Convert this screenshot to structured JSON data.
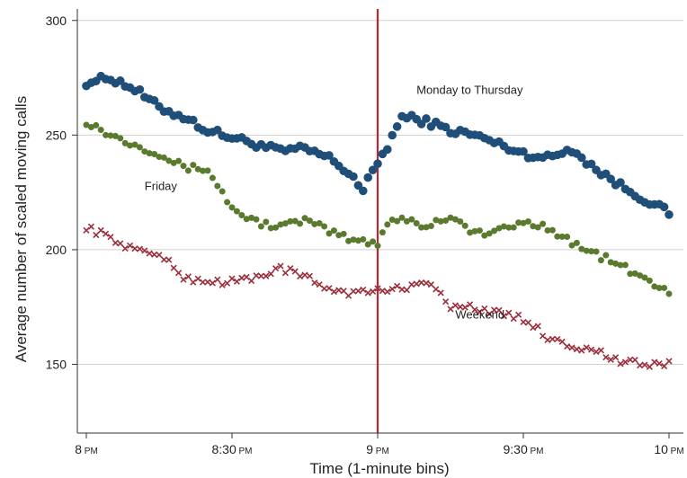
{
  "chart_data": {
    "type": "scatter",
    "title": "",
    "xlabel": "Time (1-minute bins)",
    "ylabel": "Average number of scaled moving calls",
    "x_unit": "minutes after 8 PM",
    "xlim": [
      0,
      120
    ],
    "ylim": [
      120,
      305
    ],
    "x_ticks": [
      {
        "value": 0,
        "label": "8",
        "suffix": "PM"
      },
      {
        "value": 30,
        "label": "8:30",
        "suffix": "PM"
      },
      {
        "value": 60,
        "label": "9",
        "suffix": "PM"
      },
      {
        "value": 90,
        "label": "9:30",
        "suffix": "PM"
      },
      {
        "value": 120,
        "label": "10",
        "suffix": "PM"
      }
    ],
    "y_ticks": [
      150,
      200,
      250,
      300
    ],
    "grid": "horizontal",
    "reference_line": {
      "x": 60,
      "color": "#b22a38"
    },
    "series": [
      {
        "name": "Monday to Thursday",
        "marker": "circle",
        "color": "#1f4e79",
        "label_anchor": {
          "x": 68,
          "y": 268
        },
        "x": [
          0,
          5,
          10,
          15,
          20,
          25,
          30,
          35,
          40,
          45,
          50,
          55,
          57,
          58,
          60,
          62,
          65,
          70,
          75,
          80,
          85,
          90,
          95,
          100,
          105,
          110,
          115,
          120
        ],
        "y": [
          273,
          275,
          270,
          262,
          258,
          252,
          249,
          246,
          243,
          244,
          240,
          232,
          225,
          230,
          238,
          245,
          258,
          256,
          252,
          250,
          246,
          242,
          240,
          244,
          235,
          228,
          222,
          216
        ]
      },
      {
        "name": "Friday",
        "marker": "circle",
        "color": "#5a7a2e",
        "label_anchor": {
          "x": 12,
          "y": 226
        },
        "x": [
          0,
          5,
          10,
          15,
          20,
          25,
          30,
          35,
          40,
          45,
          50,
          55,
          60,
          62,
          65,
          70,
          75,
          80,
          85,
          90,
          95,
          100,
          105,
          110,
          115,
          120
        ],
        "y": [
          256,
          250,
          246,
          242,
          236,
          235,
          218,
          212,
          210,
          213,
          208,
          204,
          203,
          212,
          214,
          210,
          215,
          207,
          208,
          212,
          210,
          203,
          198,
          193,
          187,
          182
        ]
      },
      {
        "name": "Weekend",
        "marker": "x",
        "color": "#9b2d3a",
        "label_anchor": {
          "x": 76,
          "y": 170
        },
        "x": [
          0,
          5,
          10,
          15,
          20,
          25,
          30,
          35,
          40,
          45,
          50,
          55,
          60,
          65,
          70,
          75,
          80,
          85,
          90,
          95,
          100,
          105,
          110,
          115,
          120
        ],
        "y": [
          210,
          205,
          200,
          198,
          188,
          186,
          186,
          188,
          192,
          188,
          183,
          181,
          182,
          183,
          187,
          175,
          175,
          172,
          170,
          162,
          158,
          156,
          151,
          150,
          150
        ]
      }
    ]
  }
}
